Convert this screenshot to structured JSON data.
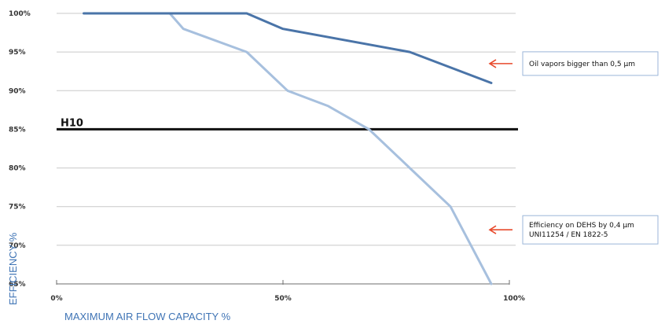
{
  "chart_data": {
    "type": "line",
    "ylabel": "EFFICIENCY %",
    "xlabel": "MAXIMUM AIR FLOW CAPACITY %",
    "ylim": [
      65,
      100
    ],
    "xlim": [
      0,
      100
    ],
    "y_ticks": [
      {
        "value": 100,
        "label": "100%"
      },
      {
        "value": 95,
        "label": "95%"
      },
      {
        "value": 90,
        "label": "90%"
      },
      {
        "value": 85,
        "label": "85%"
      },
      {
        "value": 80,
        "label": "80%"
      },
      {
        "value": 75,
        "label": "75%"
      },
      {
        "value": 70,
        "label": "70%"
      },
      {
        "value": 65,
        "label": "65%"
      }
    ],
    "x_ticks": [
      {
        "value": 0,
        "label": "0%"
      },
      {
        "value": 50,
        "label": "50%"
      },
      {
        "value": 100,
        "label": "100%"
      }
    ],
    "grid": true,
    "reference_line": {
      "value": 85,
      "label": "H10",
      "color": "#111111"
    },
    "series": [
      {
        "name": "Oil vapors bigger than  0,5 µm",
        "color": "#4a74a8",
        "x": [
          6,
          42,
          50,
          78,
          96
        ],
        "y": [
          100,
          100,
          98,
          95,
          91
        ]
      },
      {
        "name": "Efficiency on DEHS by 0,4 µm",
        "name_line2": "UNI11254 / EN 1822-5",
        "color": "#a7c0de",
        "x": [
          6,
          25,
          28,
          42,
          51,
          60,
          69,
          78,
          87,
          96
        ],
        "y": [
          100,
          100,
          98,
          95,
          90,
          88,
          85,
          80,
          75,
          65
        ]
      }
    ],
    "arrow_color": "#e84a2c"
  }
}
